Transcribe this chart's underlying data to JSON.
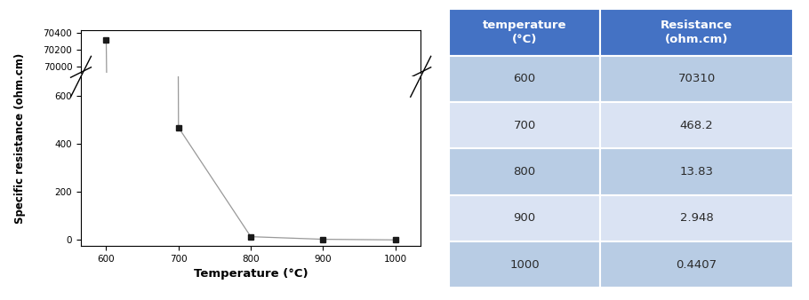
{
  "temperatures": [
    600,
    700,
    800,
    900,
    1000
  ],
  "resistances": [
    70310,
    468.2,
    13.83,
    2.948,
    0.4407
  ],
  "xlabel": "Temperature (°C)",
  "ylabel": "Specific resistance (ohm.cm)",
  "yticks_upper": [
    70000,
    70200,
    70400
  ],
  "yticks_lower": [
    0,
    200,
    400,
    600
  ],
  "upper_ylim": [
    69930,
    70430
  ],
  "lower_ylim": [
    -25,
    680
  ],
  "table_col1_header": "temperature\n(°C)",
  "table_col2_header": "Resistance\n(ohm.cm)",
  "table_rows": [
    [
      "600",
      "70310"
    ],
    [
      "700",
      "468.2"
    ],
    [
      "800",
      "13.83"
    ],
    [
      "900",
      "2.948"
    ],
    [
      "1000",
      "0.4407"
    ]
  ],
  "header_color": "#4472C4",
  "row_color_odd": "#B8CCE4",
  "row_color_even": "#DAE3F3",
  "line_color": "#999999",
  "marker_color": "#1a1a1a",
  "bg_color": "#ffffff"
}
